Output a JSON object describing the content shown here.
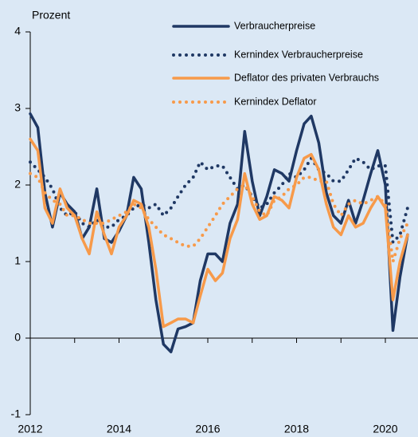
{
  "chart_data": {
    "type": "line",
    "y_label": "Prozent",
    "x": [
      2012,
      2012.17,
      2012.33,
      2012.5,
      2012.67,
      2012.83,
      2013,
      2013.17,
      2013.33,
      2013.5,
      2013.67,
      2013.83,
      2014,
      2014.17,
      2014.33,
      2014.5,
      2014.67,
      2014.83,
      2015,
      2015.17,
      2015.33,
      2015.5,
      2015.67,
      2015.83,
      2016,
      2016.17,
      2016.33,
      2016.5,
      2016.67,
      2016.83,
      2017,
      2017.17,
      2017.33,
      2017.5,
      2017.67,
      2017.83,
      2018,
      2018.17,
      2018.33,
      2018.5,
      2018.67,
      2018.83,
      2019,
      2019.17,
      2019.33,
      2019.5,
      2019.67,
      2019.83,
      2020,
      2020.17,
      2020.33,
      2020.5
    ],
    "series": [
      {
        "name": "Verbraucherpreise",
        "color": "#1f3864",
        "style": "solid",
        "values": [
          2.93,
          2.75,
          1.9,
          1.45,
          1.9,
          1.75,
          1.65,
          1.3,
          1.45,
          1.95,
          1.3,
          1.25,
          1.4,
          1.6,
          2.1,
          1.95,
          1.25,
          0.5,
          -0.08,
          -0.18,
          0.12,
          0.15,
          0.2,
          0.75,
          1.1,
          1.1,
          1.0,
          1.5,
          1.75,
          2.7,
          2.05,
          1.6,
          1.85,
          2.2,
          2.15,
          2.05,
          2.45,
          2.8,
          2.9,
          2.55,
          1.9,
          1.6,
          1.5,
          1.8,
          1.5,
          1.8,
          2.15,
          2.45,
          2.0,
          0.1,
          0.8,
          1.35
        ]
      },
      {
        "name": "Kernindex Verbraucherpreise",
        "color": "#1f3864",
        "style": "dotted",
        "values": [
          2.3,
          2.2,
          2.1,
          1.95,
          1.7,
          1.6,
          1.65,
          1.5,
          1.45,
          1.55,
          1.45,
          1.45,
          1.55,
          1.6,
          1.7,
          1.75,
          1.7,
          1.75,
          1.6,
          1.7,
          1.85,
          2.0,
          2.1,
          2.3,
          2.2,
          2.25,
          2.25,
          2.1,
          1.95,
          2.0,
          1.85,
          1.7,
          1.75,
          1.9,
          2.0,
          2.15,
          2.1,
          2.2,
          2.35,
          2.2,
          2.15,
          2.05,
          2.05,
          2.2,
          2.35,
          2.3,
          2.2,
          2.25,
          2.25,
          1.25,
          1.35,
          1.7
        ]
      },
      {
        "name": "Deflator des privaten Verbrauchs",
        "color": "#f79a4a",
        "style": "solid",
        "values": [
          2.6,
          2.45,
          1.7,
          1.5,
          1.95,
          1.7,
          1.6,
          1.3,
          1.1,
          1.65,
          1.35,
          1.1,
          1.45,
          1.6,
          1.8,
          1.75,
          1.45,
          0.9,
          0.15,
          0.2,
          0.25,
          0.25,
          0.2,
          0.55,
          0.9,
          0.75,
          0.85,
          1.3,
          1.55,
          2.15,
          1.75,
          1.55,
          1.6,
          1.85,
          1.8,
          1.7,
          2.1,
          2.35,
          2.4,
          2.2,
          1.75,
          1.45,
          1.35,
          1.6,
          1.45,
          1.5,
          1.7,
          1.85,
          1.7,
          0.5,
          1.0,
          1.35
        ]
      },
      {
        "name": "Kernindex Deflator",
        "color": "#f79a4a",
        "style": "dotted",
        "values": [
          2.15,
          2.1,
          1.9,
          1.8,
          1.75,
          1.6,
          1.6,
          1.55,
          1.5,
          1.5,
          1.5,
          1.55,
          1.6,
          1.65,
          1.75,
          1.7,
          1.55,
          1.45,
          1.35,
          1.3,
          1.25,
          1.2,
          1.2,
          1.3,
          1.45,
          1.6,
          1.75,
          1.85,
          1.95,
          2.0,
          1.85,
          1.65,
          1.6,
          1.8,
          1.85,
          1.95,
          2.0,
          2.1,
          2.1,
          2.05,
          2.05,
          1.75,
          1.6,
          1.75,
          1.8,
          1.75,
          1.8,
          1.85,
          1.75,
          1.0,
          1.3,
          1.5
        ]
      }
    ],
    "xlim": [
      2012,
      2020.75
    ],
    "xticks": [
      2012,
      2014,
      2016,
      2018,
      2020
    ],
    "xminorticks": [
      2013,
      2015,
      2017,
      2019
    ],
    "ylim": [
      -1,
      4
    ],
    "yticks": [
      -1,
      0,
      1,
      2,
      3,
      4
    ],
    "grid": false,
    "legend": "top-right"
  }
}
